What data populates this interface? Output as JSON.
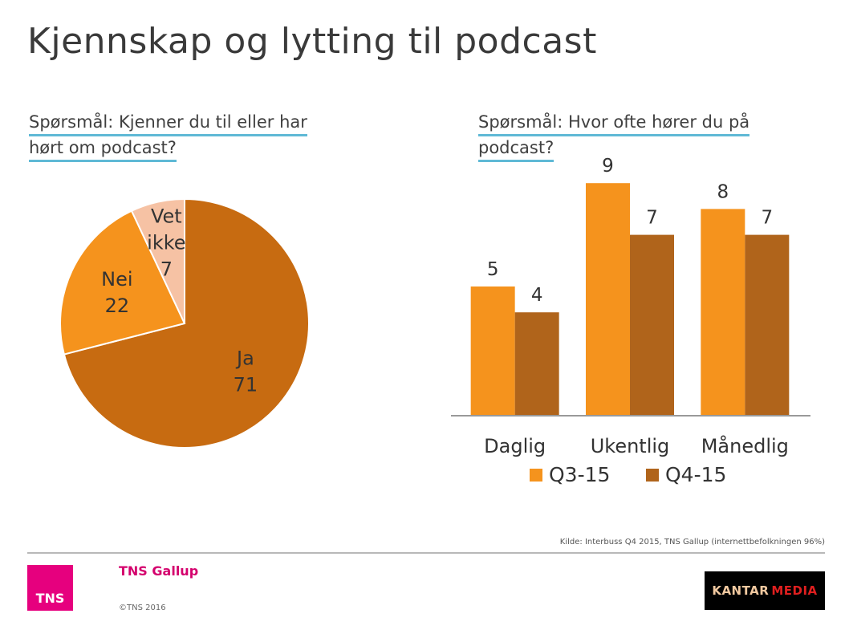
{
  "title": "Kjennskap og lytting til podcast",
  "left_question": {
    "line1": "Spørsmål: Kjenner du til eller har",
    "line2": "hørt om podcast?"
  },
  "right_question": {
    "line1": "Spørsmål: Hvor ofte hører du på",
    "line2": "podcast?"
  },
  "colors": {
    "pie_ja": "#c76b11",
    "pie_nei": "#f5931d",
    "pie_vet_ikke": "#f6c2a4",
    "q3": "#f5931d",
    "q4": "#b0641b",
    "accent_line": "#5fb9d6",
    "tns": "#e6007e"
  },
  "chart_data": [
    {
      "type": "pie",
      "slices": [
        {
          "label": "Ja",
          "value": 71
        },
        {
          "label": "Nei",
          "value": 22
        },
        {
          "label": "Vet ikke",
          "value": 7
        }
      ]
    },
    {
      "type": "bar",
      "categories": [
        "Daglig",
        "Ukentlig",
        "Månedlig"
      ],
      "series": [
        {
          "name": "Q3-15",
          "values": [
            5,
            9,
            8
          ]
        },
        {
          "name": "Q4-15",
          "values": [
            4,
            7,
            7
          ]
        }
      ],
      "legend": "bottom",
      "grid": false
    }
  ],
  "footer": {
    "source": "Kilde: Interbuss Q4 2015, TNS Gallup (internettbefolkningen 96%)",
    "brand": "TNS Gallup",
    "copyright": "©TNS 2016",
    "tns_logo": "TNS",
    "kantar_a": "KANTAR",
    "kantar_b": "MEDIA"
  }
}
